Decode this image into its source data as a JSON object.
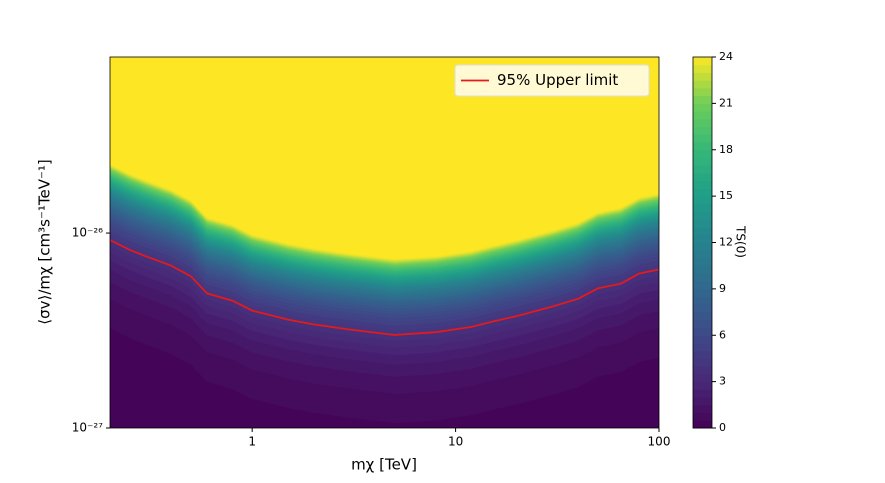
{
  "chart_data": {
    "type": "contour",
    "xlabel": "mχ [TeV]",
    "ylabel": "⟨σv⟩/mχ [cm³s⁻¹TeV⁻¹]",
    "xscale": "log",
    "yscale": "log",
    "xlim": [
      0.2,
      100
    ],
    "ylim": [
      1e-27,
      8e-26
    ],
    "xticks": [
      1,
      10,
      100
    ],
    "yticks": [
      {
        "value": 1e-27,
        "label": "10⁻²⁷"
      },
      {
        "value": 1e-26,
        "label": "10⁻²⁶"
      }
    ],
    "colorbar": {
      "label": "TS(0)",
      "cmap": "viridis",
      "clim": [
        0,
        24
      ],
      "ticks": [
        0,
        3,
        6,
        9,
        12,
        15,
        18,
        21,
        24
      ]
    },
    "legend": "upper right",
    "x": [
      0.2,
      0.25,
      0.3,
      0.4,
      0.5,
      0.6,
      0.8,
      1,
      1.5,
      2,
      3,
      5,
      8,
      12,
      15,
      20,
      30,
      40,
      50,
      65,
      80,
      100
    ],
    "series": [
      {
        "name": "95% Upper limit",
        "color": "#e41a1c",
        "values": [
          9.2e-27,
          8.2e-27,
          7.6e-27,
          6.8e-27,
          6e-27,
          4.9e-27,
          4.5e-27,
          4e-27,
          3.6e-27,
          3.4e-27,
          3.2e-27,
          3e-27,
          3.1e-27,
          3.3e-27,
          3.5e-27,
          3.75e-27,
          4.2e-27,
          4.6e-27,
          5.2e-27,
          5.5e-27,
          6.2e-27,
          6.5e-27
        ]
      }
    ]
  }
}
